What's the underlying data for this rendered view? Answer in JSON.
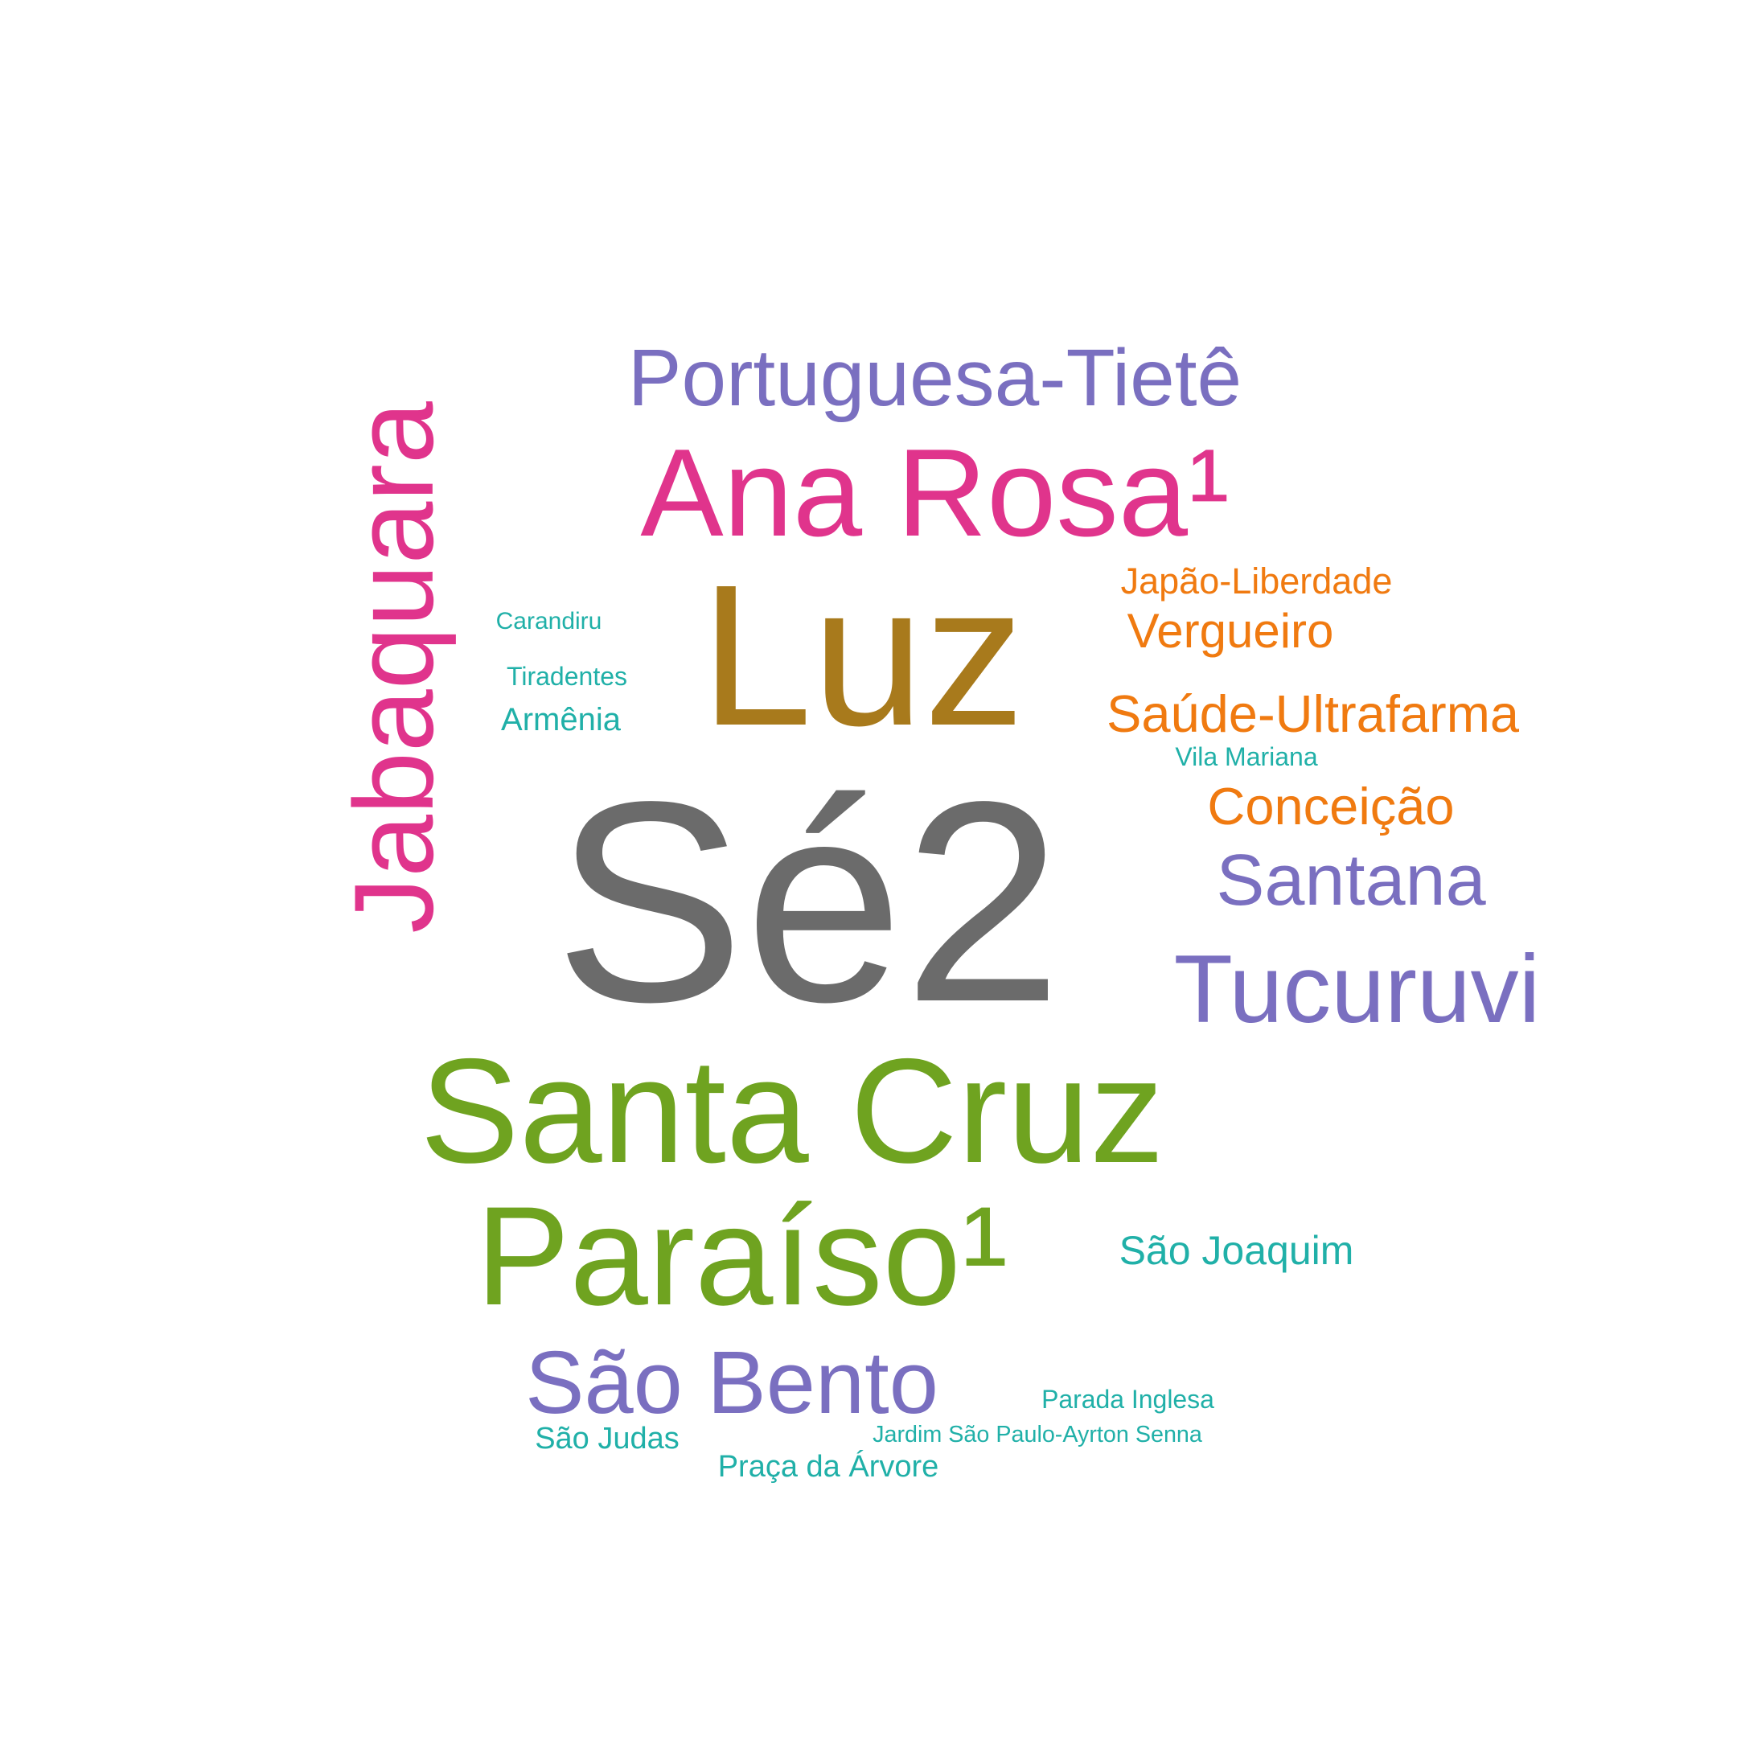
{
  "palette": {
    "gray": "#6b6b6b",
    "gold": "#a87a1c",
    "pink": "#e0348c",
    "purple": "#7a6fc0",
    "green": "#6fa320",
    "orange": "#f07a10",
    "teal": "#20b0a8"
  },
  "words": [
    {
      "id": "se2",
      "text": "Sé2",
      "color": "gray"
    },
    {
      "id": "luz",
      "text": "Luz",
      "color": "gold"
    },
    {
      "id": "santa-cruz",
      "text": "Santa Cruz",
      "color": "green"
    },
    {
      "id": "jabaquara",
      "text": "Jabaquara",
      "color": "pink"
    },
    {
      "id": "paraiso",
      "text": "Paraíso¹",
      "color": "green"
    },
    {
      "id": "ana-rosa",
      "text": "Ana Rosa¹",
      "color": "pink"
    },
    {
      "id": "portuguesa-tiete",
      "text": "Portuguesa-Tietê",
      "color": "purple"
    },
    {
      "id": "sao-bento",
      "text": "São Bento",
      "color": "purple"
    },
    {
      "id": "tucuruvi",
      "text": "Tucuruvi",
      "color": "purple"
    },
    {
      "id": "santana",
      "text": "Santana",
      "color": "purple"
    },
    {
      "id": "saude-ultrafarma",
      "text": "Saúde-Ultrafarma",
      "color": "orange"
    },
    {
      "id": "conceicao",
      "text": "Conceição",
      "color": "orange"
    },
    {
      "id": "vergueiro",
      "text": "Vergueiro",
      "color": "orange"
    },
    {
      "id": "japao-liberdade",
      "text": "Japão-Liberdade",
      "color": "orange"
    },
    {
      "id": "sao-joaquim",
      "text": "São Joaquim",
      "color": "teal"
    },
    {
      "id": "armenia",
      "text": "Armênia",
      "color": "teal"
    },
    {
      "id": "vila-mariana",
      "text": "Vila Mariana",
      "color": "teal"
    },
    {
      "id": "tiradentes",
      "text": "Tiradentes",
      "color": "teal"
    },
    {
      "id": "carandiru",
      "text": "Carandiru",
      "color": "teal"
    },
    {
      "id": "sao-judas",
      "text": "São Judas",
      "color": "teal"
    },
    {
      "id": "praca-da-arvore",
      "text": "Praça da Árvore",
      "color": "teal"
    },
    {
      "id": "parada-inglesa",
      "text": "Parada Inglesa",
      "color": "teal"
    },
    {
      "id": "jardim-sao-paulo",
      "text": "Jardim São Paulo-Ayrton Senna",
      "color": "teal"
    }
  ]
}
